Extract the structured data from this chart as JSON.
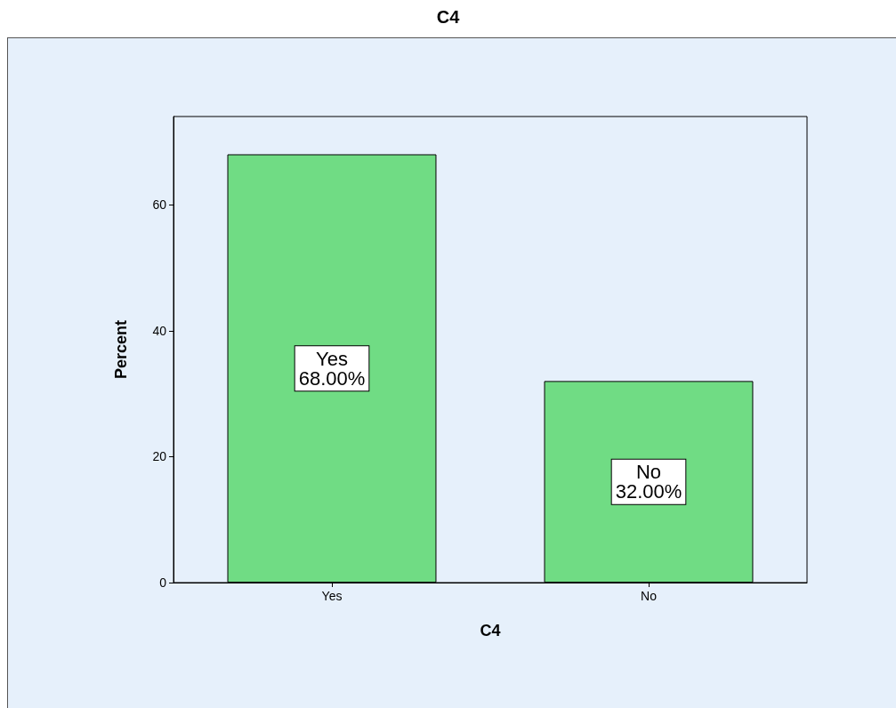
{
  "chart_data": {
    "type": "bar",
    "title": "C4",
    "xlabel": "C4",
    "ylabel": "Percent",
    "categories": [
      "Yes",
      "No"
    ],
    "values": [
      68,
      32
    ],
    "value_labels": [
      "Yes\n68.00%",
      "No\n32.00%"
    ],
    "color": "#70dc84",
    "ylim": [
      0,
      74
    ],
    "yticks": [
      0,
      20,
      40,
      60
    ],
    "grid": false
  }
}
